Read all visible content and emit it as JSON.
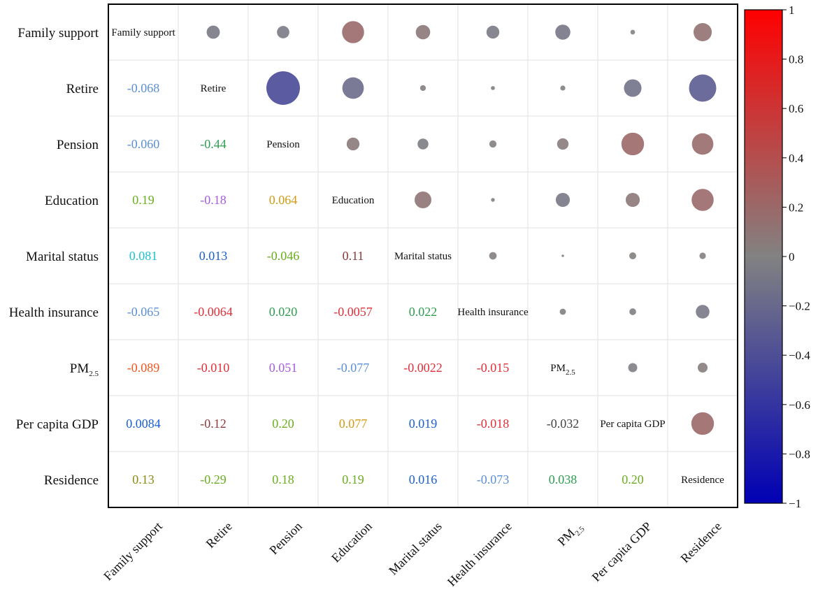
{
  "chart_data": {
    "type": "heatmap",
    "subtype": "correlation-matrix",
    "variables": [
      {
        "label": "Family support"
      },
      {
        "label": "Retire"
      },
      {
        "label": "Pension"
      },
      {
        "label": "Education"
      },
      {
        "label": "Marital status"
      },
      {
        "label": "Health insurance"
      },
      {
        "label": "PM",
        "subscript": "2.5"
      },
      {
        "label": "Per capita GDP"
      },
      {
        "label": "Residence"
      }
    ],
    "lower_triangle_labels": [
      [],
      [
        "-0.068"
      ],
      [
        "-0.060",
        "-0.44"
      ],
      [
        "0.19",
        "-0.18",
        "0.064"
      ],
      [
        "0.081",
        "0.013",
        "-0.046",
        "0.11"
      ],
      [
        "-0.065",
        "-0.0064",
        "0.020",
        "-0.0057",
        "0.022"
      ],
      [
        "-0.089",
        "-0.010",
        "0.051",
        "-0.077",
        "-0.0022",
        "-0.015"
      ],
      [
        "0.0084",
        "-0.12",
        "0.20",
        "0.077",
        "0.019",
        "-0.018",
        "-0.032"
      ],
      [
        "0.13",
        "-0.29",
        "0.18",
        "0.19",
        "0.016",
        "-0.073",
        "0.038",
        "0.20"
      ]
    ],
    "lower_triangle_text_colors": [
      [],
      [
        "#5b8fd6"
      ],
      [
        "#5b8fd6",
        "#2e9e4f"
      ],
      [
        "#6aad1e",
        "#a65be0",
        "#d39a12"
      ],
      [
        "#1fc3cf",
        "#1a5fd4",
        "#6aad1e",
        "#8a3a3a"
      ],
      [
        "#5b8fd6",
        "#e0303a",
        "#2e9e4f",
        "#e0303a",
        "#2e9e4f"
      ],
      [
        "#f0561e",
        "#e0303a",
        "#a65be0",
        "#5b8fd6",
        "#e0303a",
        "#e0303a"
      ],
      [
        "#1a5fd4",
        "#8a3a3a",
        "#6aad1e",
        "#d39a12",
        "#1a5fd4",
        "#e0303a",
        "#444444"
      ],
      [
        "#8a8a12",
        "#6aad1e",
        "#6aad1e",
        "#6aad1e",
        "#1a5fd4",
        "#5b8fd6",
        "#2e9e4f",
        "#6aad1e"
      ]
    ],
    "upper_triangle_circles": [
      [
        null,
        -0.068,
        -0.06,
        0.19,
        0.081,
        -0.065,
        -0.089,
        0.0084,
        0.13
      ],
      [
        null,
        null,
        -0.44,
        -0.18,
        0.013,
        -0.0064,
        -0.01,
        -0.12,
        -0.29
      ],
      [
        null,
        null,
        null,
        0.064,
        -0.046,
        0.02,
        0.051,
        0.2,
        0.18
      ],
      [
        null,
        null,
        null,
        null,
        0.11,
        -0.0057,
        -0.077,
        0.077,
        0.19
      ],
      [
        null,
        null,
        null,
        null,
        null,
        0.022,
        -0.0022,
        0.019,
        0.016
      ],
      [
        null,
        null,
        null,
        null,
        null,
        null,
        -0.015,
        -0.018,
        -0.073
      ],
      [
        null,
        null,
        null,
        null,
        null,
        null,
        null,
        -0.032,
        0.038
      ],
      [
        null,
        null,
        null,
        null,
        null,
        null,
        null,
        null,
        0.2
      ],
      [
        null,
        null,
        null,
        null,
        null,
        null,
        null,
        null,
        null
      ]
    ],
    "color_scale": {
      "min": -1,
      "max": 1,
      "stops": [
        {
          "value": -1,
          "color": "#0000b4"
        },
        {
          "value": 0,
          "color": "#828282"
        },
        {
          "value": 1,
          "color": "#ff0000"
        }
      ],
      "tick_labels": [
        "1",
        "0.8",
        "0.6",
        "0.4",
        "0.2",
        "0",
        "−0.2",
        "−0.4",
        "−0.6",
        "−0.8",
        "−1"
      ],
      "tick_values": [
        1,
        0.8,
        0.6,
        0.4,
        0.2,
        0,
        -0.2,
        -0.4,
        -0.6,
        -0.8,
        -1
      ]
    }
  }
}
